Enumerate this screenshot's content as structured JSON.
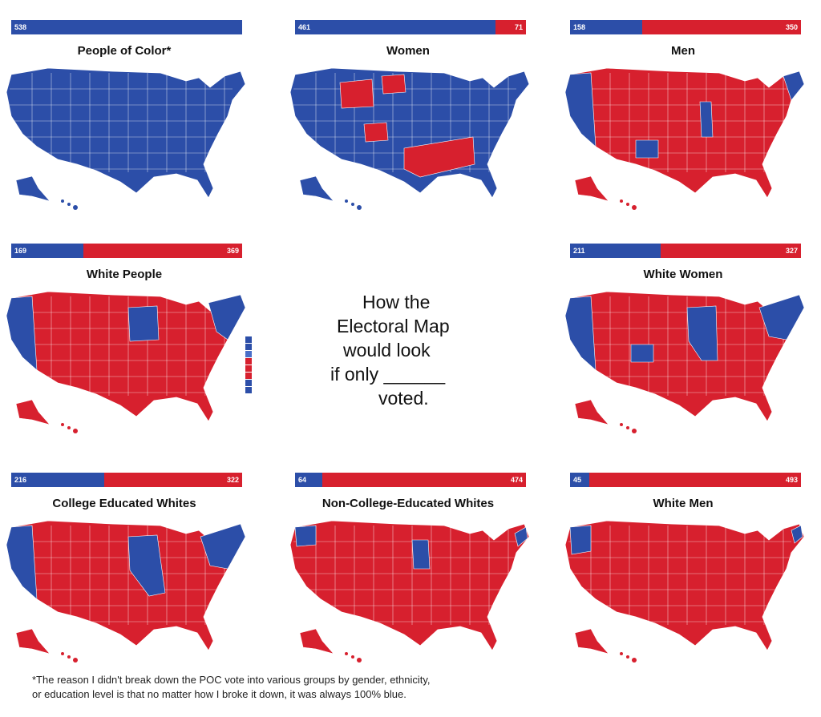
{
  "colors": {
    "dem": "#2c4ea8",
    "rep": "#d7202e"
  },
  "center": {
    "line1": "How the",
    "line2": "Electoral Map",
    "line3": "would look",
    "line4": "if only ______",
    "line5": "voted."
  },
  "footnote": {
    "line1": "*The reason I didn't break down the POC vote into various groups by gender, ethnicity,",
    "line2": "or education level is that no matter how I broke it down, it was always 100% blue."
  },
  "panels": [
    {
      "title": "People of Color*",
      "dem": 538,
      "dem_label": "538",
      "rep": 0,
      "rep_label": "",
      "mostly": "dem"
    },
    {
      "title": "Women",
      "dem": 461,
      "dem_label": "461",
      "rep": 71,
      "rep_label": "71",
      "mostly": "dem"
    },
    {
      "title": "Men",
      "dem": 158,
      "dem_label": "158",
      "rep": 350,
      "rep_label": "350",
      "mostly": "rep"
    },
    {
      "title": "White People",
      "dem": 169,
      "dem_label": "169",
      "rep": 369,
      "rep_label": "369",
      "mostly": "rep"
    },
    {
      "title": "White Women",
      "dem": 211,
      "dem_label": "211",
      "rep": 327,
      "rep_label": "327",
      "mostly": "rep"
    },
    {
      "title": "College Educated Whites",
      "dem": 216,
      "dem_label": "216",
      "rep": 322,
      "rep_label": "322",
      "mostly": "rep"
    },
    {
      "title": "Non-College-Educated Whites",
      "dem": 64,
      "dem_label": "64",
      "rep": 474,
      "rep_label": "474",
      "mostly": "rep"
    },
    {
      "title": "White Men",
      "dem": 45,
      "dem_label": "45",
      "rep": 493,
      "rep_label": "493",
      "mostly": "rep"
    }
  ]
}
